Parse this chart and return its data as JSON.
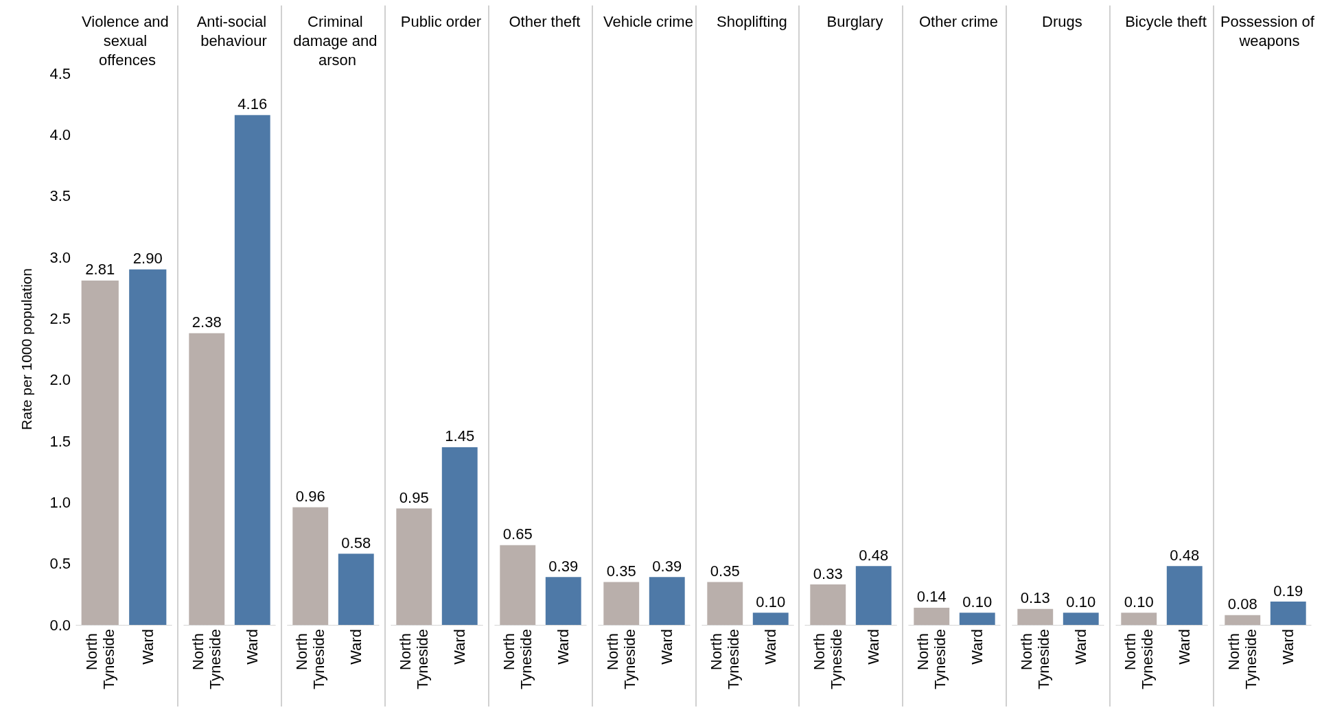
{
  "chart_data": [
    {
      "type": "bar",
      "title": "Violence and sexual offences",
      "ylabel": "Rate per 1000 population",
      "categories": [
        "North Tyneside",
        "Ward"
      ],
      "values": [
        2.81,
        2.9
      ],
      "colors": [
        "#b9afab",
        "#4e79a7"
      ],
      "ylim": [
        0,
        4.5
      ],
      "yticks": [
        {
          "value": 0,
          "label": "0.0"
        },
        {
          "value": 0.5,
          "label": "0.5"
        },
        {
          "value": 1,
          "label": "1.0"
        },
        {
          "value": 1.5,
          "label": "1.5"
        },
        {
          "value": 2,
          "label": "2.0"
        },
        {
          "value": 2.5,
          "label": "2.5"
        },
        {
          "value": 3,
          "label": "3.0"
        },
        {
          "value": 3.5,
          "label": "3.5"
        },
        {
          "value": 4,
          "label": "4.0"
        },
        {
          "value": 4.5,
          "label": "4.5"
        }
      ],
      "value_labels": [
        "2.81",
        "2.90"
      ]
    },
    {
      "type": "bar",
      "title": "Anti-social behaviour",
      "categories": [
        "North Tyneside",
        "Ward"
      ],
      "values": [
        2.38,
        4.16
      ],
      "colors": [
        "#b9afab",
        "#4e79a7"
      ],
      "ylim": [
        0,
        4.5
      ],
      "tick_labels": "x",
      "data_labels": true
    },
    {
      "type": "bar",
      "title": "Criminal damage and arson",
      "categories": [
        "North Tyneside",
        "Ward"
      ],
      "values": [
        0.96,
        0.58
      ],
      "colors": [
        "#b9afab",
        "#4e79a7"
      ],
      "ylim": [
        0,
        4.5
      ],
      "tick_labels": "x",
      "data_labels": true
    },
    {
      "type": "bar",
      "title": "Public order",
      "categories": [
        "North Tyneside",
        "Ward"
      ],
      "values": [
        0.95,
        1.45
      ],
      "colors": [
        "#b9afab",
        "#4e79a7"
      ],
      "ylim": [
        0,
        4.5
      ],
      "tick_labels": "x",
      "data_labels": true
    },
    {
      "type": "bar",
      "title": "Other theft",
      "categories": [
        "North Tyneside",
        "Ward"
      ],
      "values": [
        0.65,
        0.39
      ],
      "colors": [
        "#b9afab",
        "#4e79a7"
      ],
      "ylim": [
        0,
        4.5
      ],
      "tick_labels": "x",
      "data_labels": true
    },
    {
      "type": "bar",
      "title": "Vehicle crime",
      "categories": [
        "North Tyneside",
        "Ward"
      ],
      "values": [
        0.35,
        0.39
      ],
      "colors": [
        "#b9afab",
        "#4e79a7"
      ],
      "ylim": [
        0,
        4.5
      ],
      "tick_labels": "x",
      "data_labels": true
    },
    {
      "type": "bar",
      "title": "Shoplifting",
      "categories": [
        "North Tyneside",
        "Ward"
      ],
      "values": [
        0.35,
        0.1
      ],
      "colors": [
        "#b9afab",
        "#4e79a7"
      ],
      "ylim": [
        0,
        4.5
      ],
      "tick_labels": "x",
      "value_labels": [
        "0.35",
        "0.10"
      ]
    },
    {
      "type": "bar",
      "title": "Burglary",
      "categories": [
        "North Tyneside",
        "Ward"
      ],
      "values": [
        0.33,
        0.48
      ],
      "colors": [
        "#b9afab",
        "#4e79a7"
      ],
      "ylim": [
        0,
        4.5
      ],
      "tick_labels": "x",
      "data_labels": true
    },
    {
      "type": "bar",
      "title": "Other crime",
      "categories": [
        "North Tyneside",
        "Ward"
      ],
      "values": [
        0.14,
        0.1
      ],
      "colors": [
        "#b9afab",
        "#4e79a7"
      ],
      "ylim": [
        0,
        4.5
      ],
      "tick_labels": "x",
      "value_labels": [
        "0.14",
        "0.10"
      ]
    },
    {
      "type": "bar",
      "title": "Drugs",
      "categories": [
        "North Tyneside",
        "Ward"
      ],
      "values": [
        0.13,
        0.1
      ],
      "colors": [
        "#b9afab",
        "#4e79a7"
      ],
      "ylim": [
        0,
        4.5
      ],
      "tick_labels": "x",
      "value_labels": [
        "0.13",
        "0.10"
      ]
    },
    {
      "type": "bar",
      "title": "Bicycle theft",
      "categories": [
        "North Tyneside",
        "Ward"
      ],
      "values": [
        0.1,
        0.48
      ],
      "colors": [
        "#b9afab",
        "#4e79a7"
      ],
      "ylim": [
        0,
        4.5
      ],
      "tick_labels": "x",
      "value_labels": [
        "0.10",
        "0.48"
      ]
    },
    {
      "type": "bar",
      "title": "Possession of weapons",
      "categories": [
        "North Tyneside",
        "Ward"
      ],
      "values": [
        0.08,
        0.19
      ],
      "colors": [
        "#b9afab",
        "#4e79a7"
      ],
      "ylim": [
        0,
        4.5
      ],
      "tick_labels": "x",
      "data_labels": true
    }
  ]
}
